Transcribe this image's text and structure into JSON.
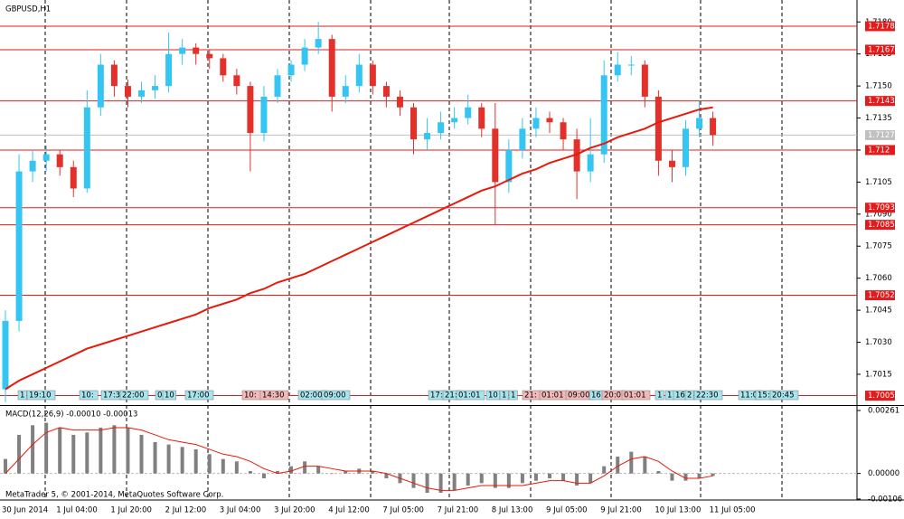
{
  "chart_data": [
    {
      "type": "candlestick",
      "title": "GBPUSD,H1",
      "categories": [
        "30 Jun 2014",
        null,
        null,
        null,
        "1 Jul 04:00",
        null,
        null,
        null,
        "1 Jul 20:00",
        null,
        null,
        null,
        "2 Jul 12:00",
        null,
        null,
        null,
        "3 Jul 04:00",
        null,
        null,
        null,
        "3 Jul 20:00",
        null,
        null,
        null,
        "4 Jul 12:00",
        null,
        null,
        null,
        "7 Jul 05:00",
        null,
        null,
        null,
        "7 Jul 21:00",
        null,
        null,
        null,
        "8 Jul 13:00",
        null,
        null,
        null,
        "9 Jul 05:00",
        null,
        null,
        null,
        "9 Jul 21:00",
        null,
        null,
        null,
        "10 Jul 13:00",
        null,
        null,
        null,
        "11 Jul 05:00"
      ],
      "open": [
        1.7008,
        1.704,
        1.711,
        1.7115,
        1.7118,
        1.7112,
        1.7102,
        1.714,
        1.716,
        1.715,
        1.7145,
        1.7148,
        1.715,
        1.7165,
        1.7168,
        1.7165,
        1.7163,
        1.7155,
        1.715,
        1.7128,
        1.7145,
        1.7155,
        1.716,
        1.7168,
        1.7172,
        1.7145,
        1.715,
        1.716,
        1.715,
        1.7145,
        1.714,
        1.7125,
        1.7128,
        1.7133,
        1.7135,
        1.714,
        1.713,
        1.7105,
        1.712,
        1.713,
        1.7135,
        1.7133,
        1.7125,
        1.711,
        1.7118,
        1.7155,
        1.716,
        1.716,
        1.7145,
        1.7115,
        1.7112,
        1.713,
        1.7135
      ],
      "high": [
        1.7045,
        1.7118,
        1.712,
        1.7122,
        1.712,
        1.7115,
        1.7148,
        1.7165,
        1.7162,
        1.7153,
        1.7152,
        1.7155,
        1.7175,
        1.7172,
        1.717,
        1.7167,
        1.7165,
        1.7158,
        1.7152,
        1.715,
        1.7158,
        1.7162,
        1.7172,
        1.718,
        1.7174,
        1.7155,
        1.7165,
        1.7162,
        1.7152,
        1.7148,
        1.7142,
        1.7135,
        1.7138,
        1.714,
        1.7146,
        1.7142,
        1.7142,
        1.7125,
        1.7135,
        1.714,
        1.7138,
        1.7135,
        1.713,
        1.7135,
        1.7162,
        1.7166,
        1.7164,
        1.7162,
        1.7148,
        1.712,
        1.7134,
        1.7143,
        1.7138
      ],
      "low": [
        1.7002,
        1.7035,
        1.7105,
        1.711,
        1.7108,
        1.7098,
        1.71,
        1.7136,
        1.7145,
        1.714,
        1.7142,
        1.7144,
        1.7147,
        1.716,
        1.716,
        1.7158,
        1.7152,
        1.7146,
        1.711,
        1.7124,
        1.7142,
        1.7152,
        1.7157,
        1.7165,
        1.7138,
        1.7142,
        1.7147,
        1.7146,
        1.714,
        1.7136,
        1.7118,
        1.712,
        1.7125,
        1.713,
        1.7132,
        1.7126,
        1.7085,
        1.71,
        1.7116,
        1.7126,
        1.7128,
        1.712,
        1.7097,
        1.7105,
        1.7114,
        1.7152,
        1.7155,
        1.714,
        1.7108,
        1.7105,
        1.7108,
        1.7126,
        1.7122
      ],
      "close": [
        1.704,
        1.711,
        1.7115,
        1.7118,
        1.7112,
        1.7102,
        1.714,
        1.716,
        1.715,
        1.7145,
        1.7148,
        1.715,
        1.7165,
        1.7168,
        1.7165,
        1.7163,
        1.7155,
        1.715,
        1.7128,
        1.7145,
        1.7155,
        1.716,
        1.7168,
        1.7172,
        1.7145,
        1.715,
        1.716,
        1.715,
        1.7145,
        1.714,
        1.7125,
        1.7128,
        1.7133,
        1.7135,
        1.714,
        1.713,
        1.7105,
        1.712,
        1.713,
        1.7135,
        1.7133,
        1.7125,
        1.711,
        1.7118,
        1.7155,
        1.716,
        1.716,
        1.7145,
        1.7115,
        1.7112,
        1.713,
        1.7135,
        1.7127
      ],
      "up_color": "#35c5f2",
      "down_color": "#e3302a",
      "moving_average": {
        "color": "#e8190b",
        "values": [
          1.7008,
          1.7012,
          1.7015,
          1.7018,
          1.7021,
          1.7024,
          1.7027,
          1.7029,
          1.7031,
          1.7033,
          1.7035,
          1.7037,
          1.7039,
          1.7041,
          1.7043,
          1.7046,
          1.7048,
          1.705,
          1.7053,
          1.7055,
          1.7058,
          1.706,
          1.7062,
          1.7065,
          1.7068,
          1.7071,
          1.7074,
          1.7077,
          1.708,
          1.7083,
          1.7086,
          1.7089,
          1.7092,
          1.7095,
          1.7098,
          1.7101,
          1.7103,
          1.7106,
          1.7109,
          1.7111,
          1.7114,
          1.7116,
          1.7118,
          1.7121,
          1.7123,
          1.7126,
          1.7128,
          1.713,
          1.7133,
          1.7135,
          1.7137,
          1.7139,
          1.714
        ]
      },
      "levels": {
        "color": "#e51b1b",
        "values": [
          1.7178,
          1.7167,
          1.7143,
          1.712,
          1.7093,
          1.7085,
          1.7052,
          1.7005
        ]
      },
      "bid": {
        "color": "#c0c0c0",
        "value": 1.7127
      },
      "events": [
        "1",
        "19:10",
        "10:",
        "17:3",
        "22:00",
        "0",
        "10",
        "17:00",
        "10:",
        "14:30",
        "02:00",
        "09:00",
        "17:",
        "21:",
        "01:01",
        "10",
        "1",
        "1",
        "21:",
        "01:01",
        "09:00",
        "16",
        "20:0",
        "01:01",
        "1",
        "1",
        "16",
        "2",
        "22:30",
        "11:0",
        "15:",
        "20:45"
      ],
      "ylim": [
        1.7001,
        1.7189
      ],
      "yticks": [
        {
          "value": 1.7015,
          "label": "1.7015"
        },
        {
          "value": 1.703,
          "label": "1.7030"
        },
        {
          "value": 1.7045,
          "label": "1.7045"
        },
        {
          "value": 1.706,
          "label": "1.7060"
        },
        {
          "value": 1.7075,
          "label": "1.7075"
        },
        {
          "value": 1.709,
          "label": "1.7090"
        },
        {
          "value": 1.7105,
          "label": "1.7105"
        },
        {
          "value": 1.712,
          "label": "1.7120"
        },
        {
          "value": 1.7135,
          "label": "1.7135"
        },
        {
          "value": 1.715,
          "label": "1.7150"
        },
        {
          "value": 1.7165,
          "label": "1.7165"
        },
        {
          "value": 1.718,
          "label": "1.7180"
        }
      ],
      "footer": "MetaTrader 5, © 2001-2014, MetaQuotes Software Corp."
    },
    {
      "type": "bar",
      "title": "MACD(12,26,9) -0.00010 -0.00013",
      "color": "#808080",
      "values": [
        0.0006,
        0.0016,
        0.002,
        0.0021,
        0.0019,
        0.0016,
        0.0017,
        0.0019,
        0.002,
        0.0019,
        0.0016,
        0.0013,
        0.0012,
        0.0011,
        0.001,
        0.0008,
        0.0006,
        0.0005,
        0.0001,
        -0.0002,
        0.0001,
        0.0003,
        0.0005,
        0.0003,
        0.0,
        0.0001,
        0.0002,
        0.0001,
        -0.0002,
        -0.0004,
        -0.0006,
        -0.0008,
        -0.0008,
        -0.0007,
        -0.0005,
        -0.0004,
        -0.0006,
        -0.0006,
        -0.0004,
        -0.0003,
        -0.0002,
        -0.0003,
        -0.0005,
        -0.0004,
        0.0003,
        0.0007,
        0.0009,
        0.0007,
        0.0001,
        -0.0003,
        -0.0003,
        -0.0002,
        -0.0001
      ],
      "signal": {
        "color": "#e8190b",
        "values": [
          0.0,
          0.0006,
          0.0012,
          0.0017,
          0.0019,
          0.0018,
          0.0018,
          0.0018,
          0.0019,
          0.0019,
          0.0018,
          0.0016,
          0.0014,
          0.0013,
          0.0012,
          0.001,
          0.0008,
          0.0007,
          0.0005,
          0.0002,
          0.0,
          0.0001,
          0.0003,
          0.0003,
          0.0002,
          0.0001,
          0.0001,
          0.0001,
          0.0,
          -0.0002,
          -0.0004,
          -0.0006,
          -0.0007,
          -0.0007,
          -0.0006,
          -0.0005,
          -0.0005,
          -0.0005,
          -0.0005,
          -0.0004,
          -0.0003,
          -0.0003,
          -0.0004,
          -0.0004,
          -0.0001,
          0.0003,
          0.0006,
          0.0007,
          0.0005,
          0.0001,
          -0.0002,
          -0.0002,
          -0.0001
        ]
      },
      "ylim": [
        -0.0011,
        0.00276
      ],
      "yticks": [
        0.00261,
        {
          "value": 0,
          "label": "0.00000"
        },
        -0.00106
      ]
    }
  ]
}
